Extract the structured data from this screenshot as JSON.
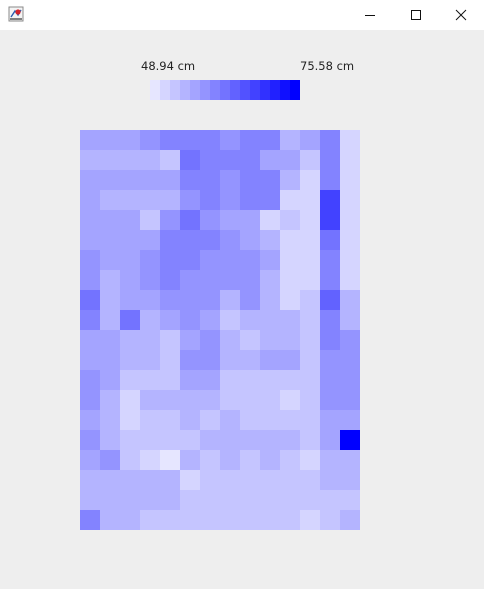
{
  "window": {
    "icons": {
      "app": "java-app-icon",
      "minimize": "minimize-icon",
      "maximize": "maximize-icon",
      "close": "close-icon"
    }
  },
  "chart_data": {
    "type": "heatmap",
    "title": "",
    "legend": {
      "min_label": "48.94 cm",
      "max_label": "75.58 cm",
      "steps": 15,
      "placement": "top"
    },
    "colormap": {
      "low": "#ffffff",
      "high": "#0000ff"
    },
    "rows": 20,
    "cols": 14,
    "values": [
      [
        4,
        4,
        4,
        5,
        6,
        6,
        6,
        5,
        6,
        6,
        3,
        4,
        6,
        1
      ],
      [
        3,
        3,
        3,
        3,
        2,
        7,
        6,
        6,
        6,
        4,
        4,
        2,
        6,
        1
      ],
      [
        4,
        4,
        4,
        4,
        4,
        6,
        6,
        5,
        6,
        6,
        3,
        1,
        6,
        1
      ],
      [
        4,
        3,
        3,
        3,
        3,
        5,
        6,
        5,
        6,
        6,
        1,
        1,
        10,
        1
      ],
      [
        4,
        4,
        4,
        2,
        5,
        7,
        5,
        4,
        4,
        1,
        2,
        1,
        10,
        1
      ],
      [
        4,
        4,
        4,
        4,
        6,
        6,
        6,
        5,
        4,
        3,
        1,
        1,
        7,
        1
      ],
      [
        5,
        4,
        4,
        5,
        6,
        6,
        5,
        5,
        5,
        4,
        1,
        1,
        6,
        1
      ],
      [
        5,
        3,
        4,
        5,
        6,
        5,
        5,
        5,
        5,
        3,
        1,
        1,
        6,
        1
      ],
      [
        7,
        3,
        4,
        4,
        5,
        5,
        5,
        3,
        5,
        3,
        1,
        2,
        8,
        3
      ],
      [
        6,
        3,
        7,
        3,
        4,
        5,
        4,
        2,
        3,
        3,
        3,
        2,
        6,
        3
      ],
      [
        4,
        4,
        3,
        3,
        2,
        4,
        5,
        3,
        2,
        3,
        3,
        2,
        6,
        5
      ],
      [
        4,
        4,
        3,
        3,
        2,
        5,
        5,
        3,
        3,
        4,
        4,
        2,
        5,
        5
      ],
      [
        5,
        4,
        2,
        2,
        2,
        4,
        4,
        2,
        2,
        2,
        2,
        2,
        5,
        5
      ],
      [
        5,
        3,
        1,
        3,
        3,
        3,
        3,
        2,
        2,
        2,
        1,
        2,
        5,
        5
      ],
      [
        4,
        3,
        1,
        2,
        2,
        3,
        2,
        3,
        2,
        2,
        2,
        2,
        4,
        4
      ],
      [
        5,
        3,
        2,
        2,
        2,
        2,
        3,
        3,
        3,
        3,
        3,
        2,
        4,
        15
      ],
      [
        4,
        5,
        2,
        1,
        0,
        3,
        2,
        3,
        2,
        3,
        2,
        1,
        3,
        3
      ],
      [
        3,
        3,
        3,
        3,
        3,
        1,
        2,
        2,
        2,
        2,
        2,
        2,
        3,
        3
      ],
      [
        3,
        3,
        3,
        3,
        3,
        2,
        2,
        2,
        2,
        2,
        2,
        2,
        2,
        2
      ],
      [
        6,
        3,
        3,
        2,
        2,
        2,
        2,
        2,
        2,
        2,
        2,
        1,
        2,
        3
      ]
    ]
  }
}
